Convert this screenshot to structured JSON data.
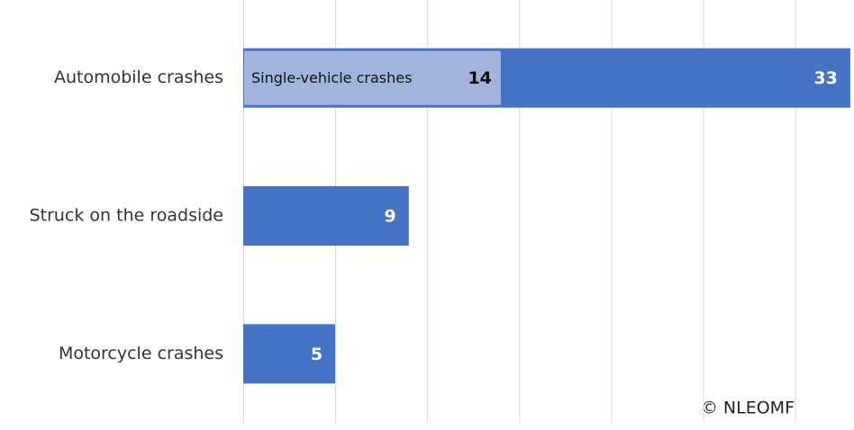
{
  "chart_data": {
    "type": "bar",
    "orientation": "horizontal",
    "categories": [
      "Automobile crashes",
      "Struck on the roadside",
      "Motorcycle crashes"
    ],
    "values": [
      33,
      9,
      5
    ],
    "color": "#4472c4",
    "overlay": {
      "name": "Single-vehicle crashes",
      "color": "#a2b4de",
      "values": [
        14,
        null,
        null
      ]
    },
    "xlim": [
      0,
      33.2
    ],
    "xticks": [
      0,
      5,
      10,
      15,
      20,
      25,
      30
    ],
    "grid": true,
    "annotation": "© NLEOMF"
  }
}
